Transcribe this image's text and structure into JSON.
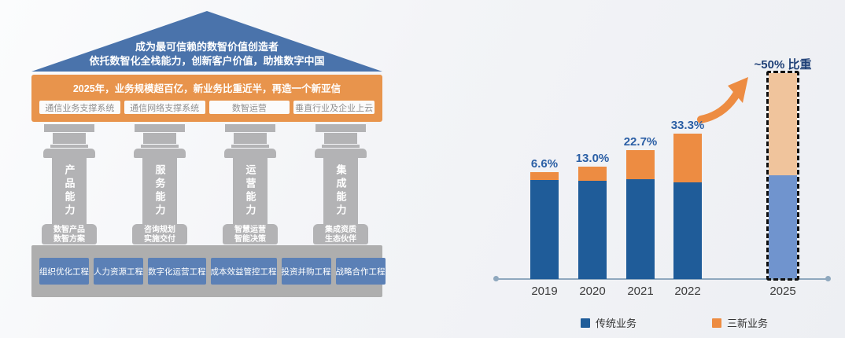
{
  "diagram": {
    "roof": {
      "line1": "成为最可信赖的数智价值创造者",
      "line2": "依托数智化全栈能力，创新客户价值，助推数字中国",
      "color": "#4A73AB"
    },
    "banner": {
      "title": "2025年，业务规模超百亿，新业务比重近半，再造一个新亚信",
      "color": "#E8944C",
      "boxes": [
        "通信业务支撑系统",
        "通信网络支撑系统",
        "数智运营",
        "垂直行业及企业上云"
      ]
    },
    "pillar_color": "#B3B3B5",
    "pillars": [
      {
        "name": "产品能力",
        "base": [
          "数智产品",
          "数智方案"
        ]
      },
      {
        "name": "服务能力",
        "base": [
          "咨询规划",
          "实施交付"
        ]
      },
      {
        "name": "运营能力",
        "base": [
          "智慧运营",
          "智能决策"
        ]
      },
      {
        "name": "集成能力",
        "base": [
          "集成资质",
          "生态伙伴"
        ]
      }
    ],
    "foundation": {
      "color": "#AEAEAE",
      "box_color": "#5B80B6",
      "boxes": [
        "组织优化工程",
        "人力资源工程",
        "数字化运营工程",
        "成本效益管控工程",
        "投资并购工程",
        "战略合作工程"
      ]
    }
  },
  "chart_data": {
    "type": "bar",
    "stacked": true,
    "categories": [
      "2019",
      "2020",
      "2021",
      "2022",
      "2025"
    ],
    "series": [
      {
        "name": "传统业务",
        "color": "#1F5C99",
        "values": [
          126,
          125,
          127,
          123,
          131
        ]
      },
      {
        "name": "三新业务",
        "color": "#ED8C42",
        "values": [
          10,
          18,
          37,
          62,
          130
        ]
      }
    ],
    "value_units": "relative bar heights in px (chart shows no y-axis)",
    "share_labels": [
      "6.6%",
      "13.0%",
      "22.7%",
      "33.3%",
      ""
    ],
    "highlight": {
      "category": "2025",
      "label": "~50% 比重",
      "bar_blue": "#7094CE",
      "bar_orange": "#F0C49C",
      "border": "#101010",
      "label_color": "#1F4077"
    },
    "label_color": "#2B5FA5",
    "axis_color": "#8FA8BE",
    "arrow_color": "#ED8C42",
    "legend": [
      {
        "label": "传统业务",
        "color": "#1F5C99"
      },
      {
        "label": "三新业务",
        "color": "#ED8C42"
      }
    ]
  }
}
